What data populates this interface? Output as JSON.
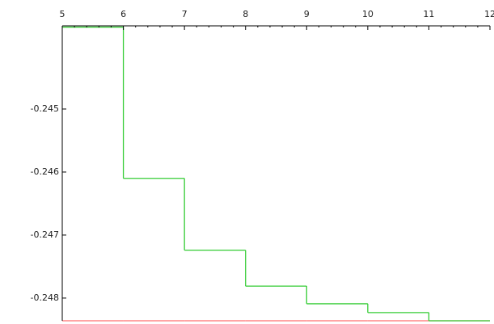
{
  "chart_data": {
    "type": "step",
    "x": [
      5,
      6,
      7,
      8,
      9,
      10,
      11
    ],
    "series": [
      {
        "color": "#ff6f6f",
        "values": [
          -0.24836,
          -0.24836,
          -0.24836,
          -0.24836,
          -0.24836,
          -0.24836,
          -0.24836
        ]
      },
      {
        "color": "#33cc33",
        "values": [
          -0.2437,
          -0.2461,
          -0.24724,
          -0.24781,
          -0.24809,
          -0.24823,
          -0.24836
        ]
      }
    ],
    "xlim": [
      5,
      12
    ],
    "xticks": [
      5,
      6,
      7,
      8,
      9,
      10,
      11,
      12
    ],
    "ylim": [
      -0.24836,
      -0.24368
    ],
    "yticks": [
      -0.245,
      -0.246,
      -0.247,
      -0.248
    ]
  }
}
